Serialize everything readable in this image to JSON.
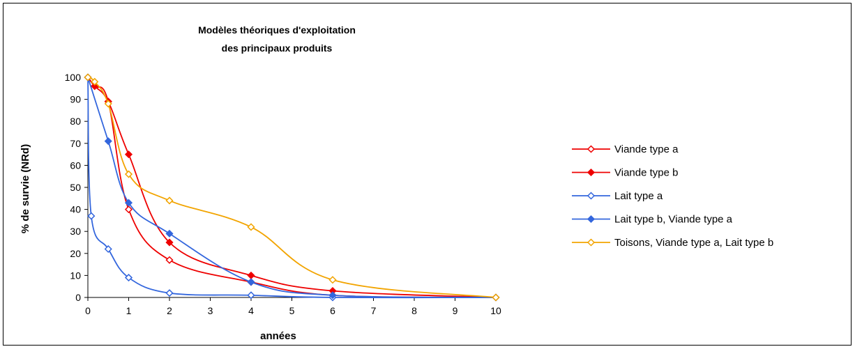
{
  "chart_data": {
    "type": "line",
    "title_lines": [
      "Modèles théoriques d'exploitation",
      "des principaux produits"
    ],
    "xlabel": "années",
    "ylabel": "% de survie (NRd)",
    "xlim": [
      0,
      10
    ],
    "ylim": [
      0,
      100
    ],
    "x_ticks": [
      0,
      1,
      2,
      3,
      4,
      5,
      6,
      7,
      8,
      9,
      10
    ],
    "y_ticks": [
      0,
      10,
      20,
      30,
      40,
      50,
      60,
      70,
      80,
      90,
      100
    ],
    "grid": false,
    "legend_position": "right",
    "series": [
      {
        "name": "Viande type a",
        "color": "#ee0000",
        "marker": "open-diamond",
        "x": [
          0,
          0.167,
          0.5,
          1,
          2,
          4,
          6,
          10
        ],
        "y": [
          100,
          96,
          89,
          40,
          17,
          7,
          1,
          0
        ]
      },
      {
        "name": "Viande type b",
        "color": "#ee0000",
        "marker": "filled-diamond",
        "x": [
          0,
          0.167,
          0.5,
          1,
          2,
          4,
          6,
          10
        ],
        "y": [
          100,
          96,
          89,
          65,
          25,
          10,
          3,
          0
        ]
      },
      {
        "name": "Lait type a",
        "color": "#3366dd",
        "marker": "open-diamond",
        "x": [
          0,
          0.083,
          0.5,
          1,
          2,
          4,
          6,
          10
        ],
        "y": [
          100,
          37,
          22,
          9,
          2,
          1,
          0,
          0
        ]
      },
      {
        "name": "Lait type b, Viande type a",
        "color": "#3366dd",
        "marker": "filled-diamond",
        "x": [
          0,
          0.5,
          1,
          2,
          4,
          6,
          10
        ],
        "y": [
          100,
          71,
          43,
          29,
          7,
          1,
          0
        ]
      },
      {
        "name": "Toisons, Viande type a, Lait type b",
        "color": "#f2a400",
        "marker": "open-diamond",
        "x": [
          0,
          0.167,
          0.5,
          1,
          2,
          4,
          6,
          10
        ],
        "y": [
          100,
          98,
          88,
          56,
          44,
          32,
          8,
          0
        ]
      }
    ]
  }
}
